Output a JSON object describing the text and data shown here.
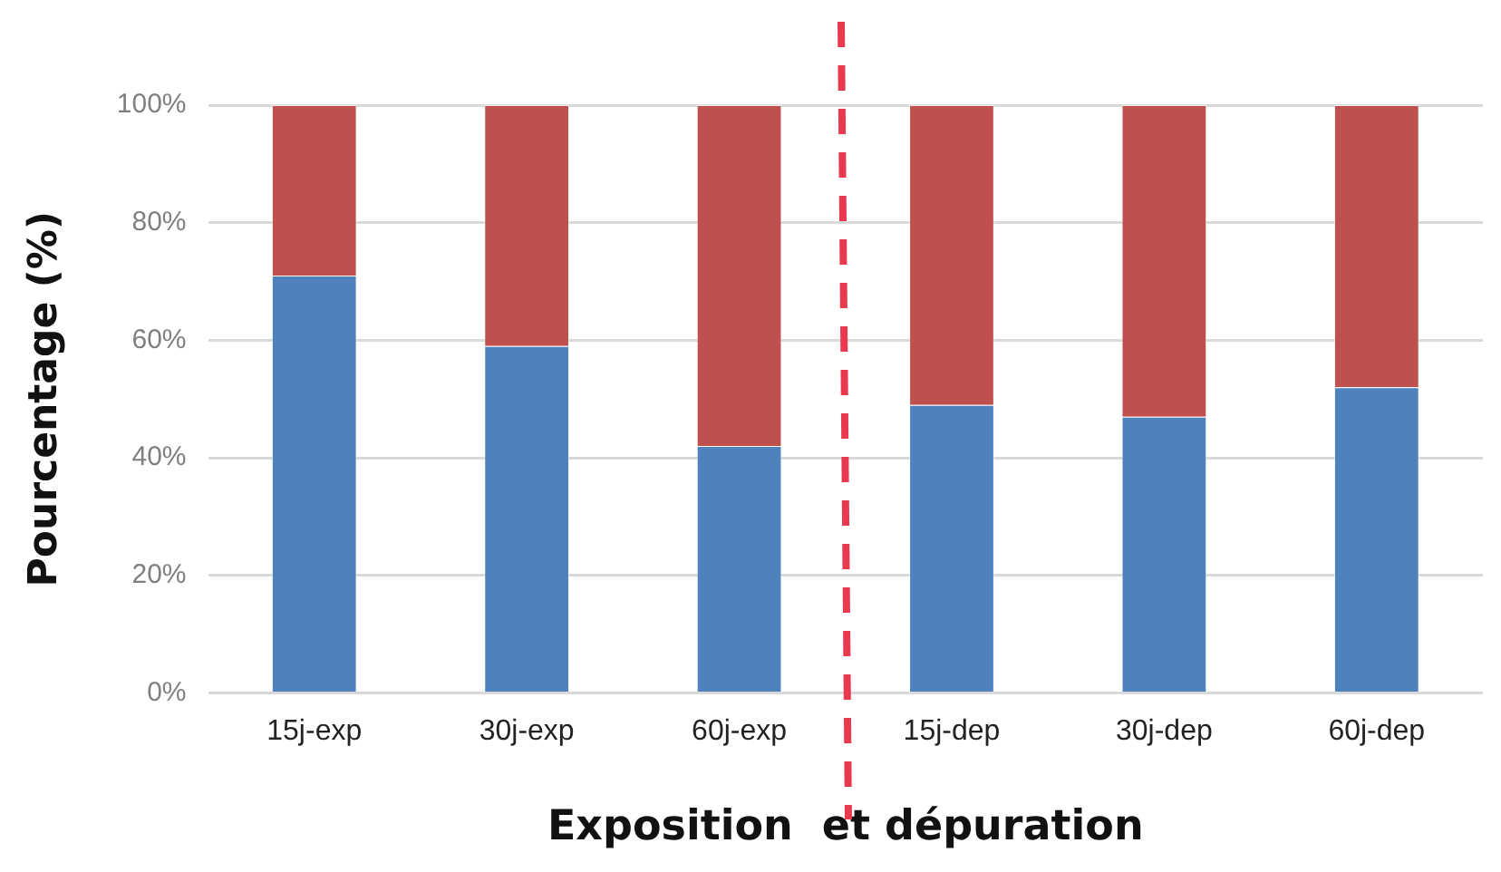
{
  "chart_data": {
    "type": "bar",
    "stacked": true,
    "xlabel": "Exposition  et dépuration",
    "ylabel": "Pourcentage (%)",
    "categories": [
      "15j-exp",
      "30j-exp",
      "60j-exp",
      "15j-dep",
      "30j-dep",
      "60j-dep"
    ],
    "series": [
      {
        "color": "#4f81bd",
        "values": [
          71,
          59,
          42,
          49,
          47,
          52
        ]
      },
      {
        "color": "#c0504d",
        "values": [
          29,
          41,
          58,
          51,
          53,
          48
        ]
      }
    ],
    "ylim": [
      0,
      100
    ],
    "yticks": [
      {
        "value": 0,
        "label": "0%"
      },
      {
        "value": 20,
        "label": "20%"
      },
      {
        "value": 40,
        "label": "40%"
      },
      {
        "value": 60,
        "label": "60%"
      },
      {
        "value": 80,
        "label": "80%"
      },
      {
        "value": 100,
        "label": "100%"
      }
    ],
    "grid": "y",
    "legend": false
  }
}
